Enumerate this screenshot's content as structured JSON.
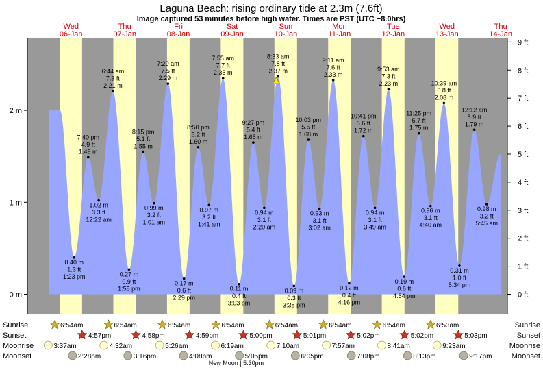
{
  "chart_data": {
    "type": "area",
    "title": "Laguna Beach: rising  ordinary tide at 2.3m (7.6ft)",
    "subtitle": "Image captured 53 minutes before high water. Times are PST (UTC −8.0hrs)",
    "days": [
      {
        "dow": "Wed",
        "date": "06-Jan"
      },
      {
        "dow": "Thu",
        "date": "07-Jan"
      },
      {
        "dow": "Fri",
        "date": "08-Jan"
      },
      {
        "dow": "Sat",
        "date": "09-Jan"
      },
      {
        "dow": "Sun",
        "date": "10-Jan"
      },
      {
        "dow": "Mon",
        "date": "11-Jan"
      },
      {
        "dow": "Tue",
        "date": "12-Jan"
      },
      {
        "dow": "Wed",
        "date": "13-Jan"
      },
      {
        "dow": "Thu",
        "date": "14-Jan"
      }
    ],
    "y_left_ticks": [
      "0 m",
      "1 m",
      "2 m"
    ],
    "y_right_ticks": [
      "0 ft",
      "1 ft",
      "2 ft",
      "3 ft",
      "4 ft",
      "5 ft",
      "6 ft",
      "7 ft",
      "8 ft",
      "9 ft"
    ],
    "ylim_m": [
      -0.1,
      2.82
    ],
    "daylight": [
      {
        "rise": 6.9,
        "set": 16.95
      },
      {
        "rise": 30.9,
        "set": 40.97
      },
      {
        "rise": 54.9,
        "set": 64.98
      },
      {
        "rise": 78.9,
        "set": 89.0
      },
      {
        "rise": 102.9,
        "set": 113.02
      },
      {
        "rise": 126.9,
        "set": 137.03
      },
      {
        "rise": 150.9,
        "set": 161.03
      },
      {
        "rise": 174.88,
        "set": 185.05
      }
    ],
    "tides": [
      {
        "t": 13.38,
        "m": 0.4,
        "lines": [
          "0.40 m",
          "1.3 ft",
          "1:23 pm"
        ],
        "high": false
      },
      {
        "t": 19.67,
        "m": 1.49,
        "lines": [
          "7:40 pm",
          "4.9 ft",
          "1.49 m"
        ],
        "high": true
      },
      {
        "t": 24.37,
        "m": 1.02,
        "lines": [
          "1.02 m",
          "3.3 ft",
          "12:22 am"
        ],
        "high": false
      },
      {
        "t": 30.73,
        "m": 2.21,
        "lines": [
          "6:44 am",
          "7.3 ft",
          "2.21 m"
        ],
        "high": true
      },
      {
        "t": 37.92,
        "m": 0.27,
        "lines": [
          "0.27 m",
          "0.9 ft",
          "1:55 pm"
        ],
        "high": false
      },
      {
        "t": 44.25,
        "m": 1.55,
        "lines": [
          "8:15 pm",
          "5.1 ft",
          "1.55 m"
        ],
        "high": true
      },
      {
        "t": 49.02,
        "m": 0.99,
        "lines": [
          "0.99 m",
          "3.2 ft",
          "1:01 am"
        ],
        "high": false
      },
      {
        "t": 55.33,
        "m": 2.29,
        "lines": [
          "7:20 am",
          "7.5 ft",
          "2.29 m"
        ],
        "high": true
      },
      {
        "t": 62.48,
        "m": 0.17,
        "lines": [
          "0.17 m",
          "0.6 ft",
          "2:29 pm"
        ],
        "high": false
      },
      {
        "t": 68.83,
        "m": 1.6,
        "lines": [
          "8:50 pm",
          "5.2 ft",
          "1.60 m"
        ],
        "high": true
      },
      {
        "t": 73.68,
        "m": 0.97,
        "lines": [
          "0.97 m",
          "3.2 ft",
          "1:41 am"
        ],
        "high": false
      },
      {
        "t": 79.92,
        "m": 2.35,
        "lines": [
          "7:55 am",
          "7.7 ft",
          "2.35 m"
        ],
        "high": true
      },
      {
        "t": 87.05,
        "m": 0.11,
        "lines": [
          "0.11 m",
          "0.4 ft",
          "3:03 pm"
        ],
        "high": false
      },
      {
        "t": 93.45,
        "m": 1.65,
        "lines": [
          "9:27 pm",
          "5.4 ft",
          "1.65 m"
        ],
        "high": true
      },
      {
        "t": 98.33,
        "m": 0.94,
        "lines": [
          "0.94 m",
          "3.1 ft",
          "2:20 am"
        ],
        "high": false
      },
      {
        "t": 104.55,
        "m": 2.37,
        "lines": [
          "8:33 am",
          "7.8 ft",
          "2.37 m"
        ],
        "high": true
      },
      {
        "t": 111.63,
        "m": 0.09,
        "lines": [
          "0.09 m",
          "0.3 ft",
          "3:38 pm"
        ],
        "high": false
      },
      {
        "t": 118.05,
        "m": 1.68,
        "lines": [
          "10:03 pm",
          "5.5 ft",
          "1.68 m"
        ],
        "high": true
      },
      {
        "t": 123.03,
        "m": 0.93,
        "lines": [
          "0.93 m",
          "3.1 ft",
          "3:02 am"
        ],
        "high": false
      },
      {
        "t": 129.18,
        "m": 2.33,
        "lines": [
          "9:11 am",
          "7.6 ft",
          "2.33 m"
        ],
        "high": true
      },
      {
        "t": 136.27,
        "m": 0.12,
        "lines": [
          "0.12 m",
          "0.4 ft",
          "4:16 pm"
        ],
        "high": false
      },
      {
        "t": 142.68,
        "m": 1.72,
        "lines": [
          "10:41 pm",
          "5.6 ft",
          "1.72 m"
        ],
        "high": true
      },
      {
        "t": 147.82,
        "m": 0.94,
        "lines": [
          "0.94 m",
          "3.1 ft",
          "3:49 am"
        ],
        "high": false
      },
      {
        "t": 153.88,
        "m": 2.23,
        "lines": [
          "9:53 am",
          "7.3 ft",
          "2.23 m"
        ],
        "high": true
      },
      {
        "t": 160.9,
        "m": 0.19,
        "lines": [
          "0.19 m",
          "0.6 ft",
          "4:54 pm"
        ],
        "high": false
      },
      {
        "t": 167.42,
        "m": 1.75,
        "lines": [
          "11:25 pm",
          "5.7 ft",
          "1.75 m"
        ],
        "high": true
      },
      {
        "t": 172.67,
        "m": 0.96,
        "lines": [
          "0.96 m",
          "3.1 ft",
          "4:40 am"
        ],
        "high": false
      },
      {
        "t": 178.65,
        "m": 2.08,
        "lines": [
          "10:39 am",
          "6.8 ft",
          "2.08 m"
        ],
        "high": true
      },
      {
        "t": 185.57,
        "m": 0.31,
        "lines": [
          "0.31 m",
          "1.0 ft",
          "5:34 pm"
        ],
        "high": false
      },
      {
        "t": 192.2,
        "m": 1.79,
        "lines": [
          "12:12 am",
          "5.9 ft",
          "1.79 m"
        ],
        "high": true
      },
      {
        "t": 197.75,
        "m": 0.98,
        "lines": [
          "0.98 m",
          "3.2 ft",
          "5:45 am"
        ],
        "high": false
      }
    ],
    "start_level_m": 2.0,
    "end_level_m": 1.25,
    "now_marker_t": 103.67,
    "almanac": {
      "row_labels": [
        "Sunrise",
        "Sunset",
        "Moonrise",
        "Moonset"
      ],
      "sunrise": [
        {
          "t": 6.9,
          "text": "6:54am"
        },
        {
          "t": 30.9,
          "text": "6:54am"
        },
        {
          "t": 54.9,
          "text": "6:54am"
        },
        {
          "t": 78.9,
          "text": "6:54am"
        },
        {
          "t": 102.9,
          "text": "6:54am"
        },
        {
          "t": 126.9,
          "text": "6:54am"
        },
        {
          "t": 150.9,
          "text": "6:54am"
        },
        {
          "t": 174.88,
          "text": "6:53am"
        }
      ],
      "sunset": [
        {
          "t": 16.95,
          "text": "4:57pm"
        },
        {
          "t": 40.97,
          "text": "4:58pm"
        },
        {
          "t": 64.98,
          "text": "4:59pm"
        },
        {
          "t": 89.0,
          "text": "5:00pm"
        },
        {
          "t": 113.02,
          "text": "5:01pm"
        },
        {
          "t": 137.03,
          "text": "5:02pm"
        },
        {
          "t": 161.03,
          "text": "5:02pm"
        },
        {
          "t": 185.05,
          "text": "5:03pm"
        }
      ],
      "moonrise": [
        {
          "t": 3.62,
          "text": "3:37am"
        },
        {
          "t": 28.53,
          "text": "4:32am"
        },
        {
          "t": 53.43,
          "text": "5:26am"
        },
        {
          "t": 78.32,
          "text": "6:19am"
        },
        {
          "t": 103.17,
          "text": "7:10am"
        },
        {
          "t": 127.95,
          "text": "7:57am"
        },
        {
          "t": 152.68,
          "text": "8:41am"
        },
        {
          "t": 177.38,
          "text": "9:23am"
        }
      ],
      "moonset": [
        {
          "t": 14.47,
          "text": "2:28pm"
        },
        {
          "t": 39.27,
          "text": "3:16pm"
        },
        {
          "t": 64.13,
          "text": "4:08pm"
        },
        {
          "t": 89.08,
          "text": "5:05pm"
        },
        {
          "t": 114.08,
          "text": "6:05pm"
        },
        {
          "t": 139.13,
          "text": "7:08pm"
        },
        {
          "t": 164.22,
          "text": "8:13pm"
        },
        {
          "t": 189.28,
          "text": "9:17pm"
        }
      ],
      "moon_phase_note": "New Moon | 5:30pm"
    },
    "colors": {
      "night": "#999999",
      "day": "#ffffc0",
      "water": "#99a6ff",
      "plot_bg": "#ffffff",
      "date_text": "#cc0000",
      "sunrise_star": "#ccaa33",
      "sunset_star": "#cc3322",
      "moonrise_disc": "#ffffcc",
      "moonset_disc": "#b4b4a0"
    }
  }
}
